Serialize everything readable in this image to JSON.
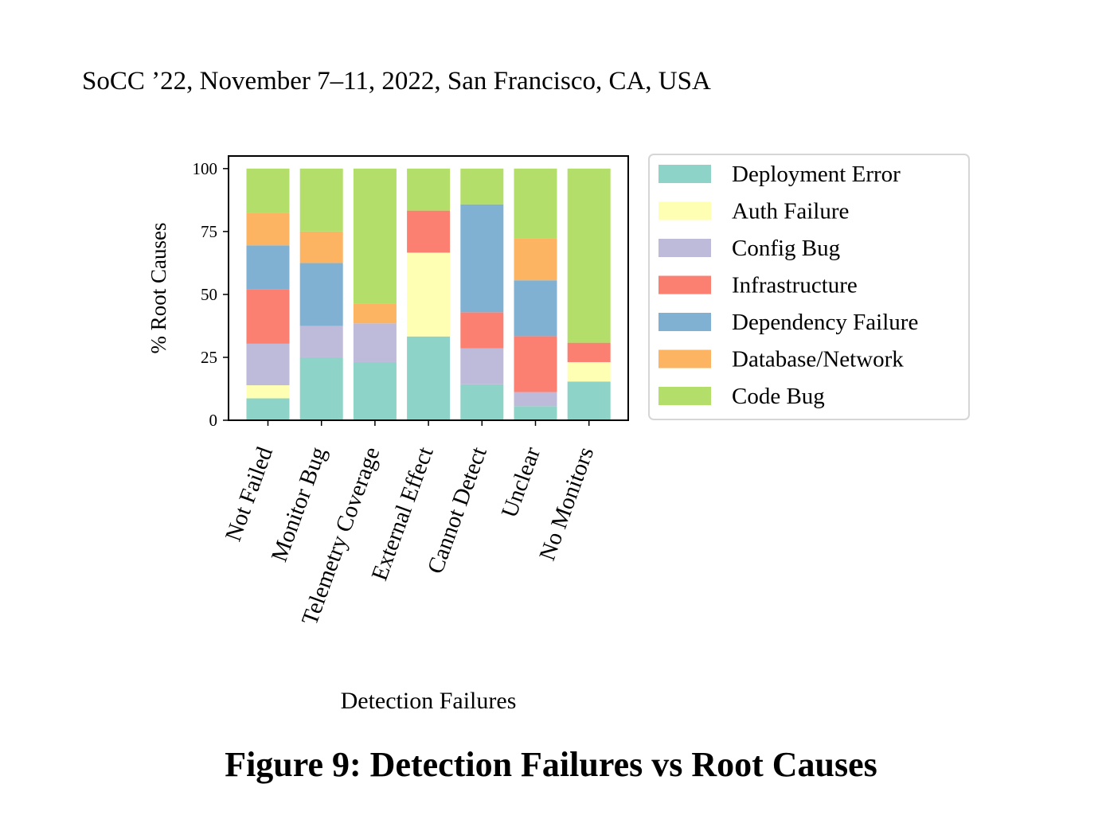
{
  "page": {
    "header": "SoCC ’22, November 7–11, 2022, San Francisco, CA, USA",
    "caption": "Figure 9: Detection Failures vs Root Causes"
  },
  "chart_data": {
    "type": "bar",
    "stacked": true,
    "xlabel": "Detection Failures",
    "ylabel": "% Root Causes",
    "ylim": [
      0,
      105
    ],
    "yticks": [
      0,
      25,
      50,
      75,
      100
    ],
    "grid": false,
    "legend_position": "right",
    "categories": [
      "Not Failed",
      "Monitor Bug",
      "Telemetry Coverage",
      "External Effect",
      "Cannot Detect",
      "Unclear",
      "No Monitors"
    ],
    "series": [
      {
        "name": "Deployment Error",
        "color": "#8dd3c7",
        "values": [
          8.7,
          25.0,
          23.1,
          33.3,
          14.3,
          5.6,
          15.4
        ]
      },
      {
        "name": "Auth Failure",
        "color": "#ffffb3",
        "values": [
          5.2,
          0,
          0,
          33.3,
          0,
          0,
          7.7
        ]
      },
      {
        "name": "Config Bug",
        "color": "#bebada",
        "values": [
          16.5,
          12.5,
          15.4,
          0,
          14.3,
          5.6,
          0
        ]
      },
      {
        "name": "Infrastructure",
        "color": "#fb8072",
        "values": [
          21.7,
          0,
          0,
          16.7,
          14.3,
          22.2,
          7.7
        ]
      },
      {
        "name": "Dependency Failure",
        "color": "#80b1d3",
        "values": [
          17.4,
          25.0,
          0,
          0,
          42.9,
          22.2,
          0
        ]
      },
      {
        "name": "Database/Network",
        "color": "#fdb462",
        "values": [
          13.0,
          12.5,
          7.7,
          0,
          0,
          16.7,
          0
        ]
      },
      {
        "name": "Code Bug",
        "color": "#b3de69",
        "values": [
          17.5,
          25.0,
          53.8,
          16.7,
          14.2,
          27.7,
          69.2
        ]
      }
    ]
  }
}
